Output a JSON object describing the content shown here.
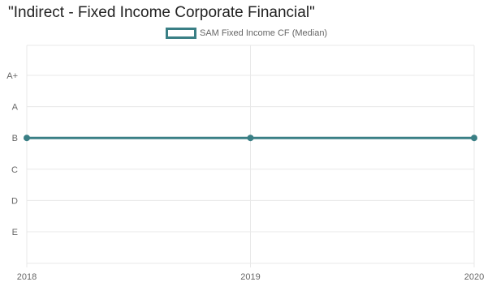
{
  "chart_data": {
    "type": "line",
    "title": "\"Indirect - Fixed Income Corporate Financial\"",
    "x": [
      "2018",
      "2019",
      "2020"
    ],
    "y_categories": [
      "A+",
      "A",
      "B",
      "C",
      "D",
      "E"
    ],
    "series": [
      {
        "name": "SAM Fixed Income CF (Median)",
        "values": [
          "B",
          "B",
          "B"
        ],
        "color": "#3a7f85"
      }
    ],
    "legend_position": "top-center",
    "grid": true
  }
}
